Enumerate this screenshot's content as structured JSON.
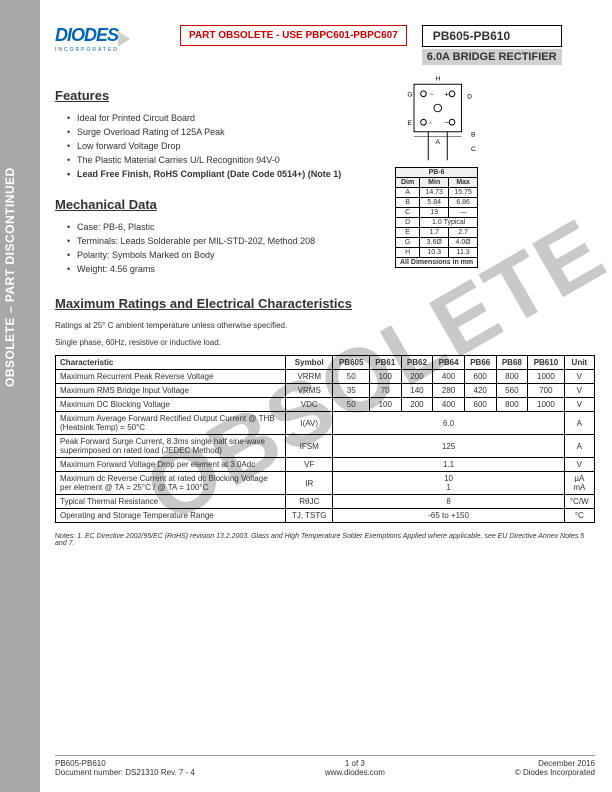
{
  "sidebar_text": "OBSOLETE – PART DISCONTINUED",
  "logo": {
    "brand": "DIODES",
    "sub": "INCORPORATED"
  },
  "obsolete_notice": "PART OBSOLETE - USE PBPC601-PBPC607",
  "part_range": "PB605-PB610",
  "subtitle": "6.0A BRIDGE RECTIFIER",
  "watermark": "OBSOLETE",
  "features": {
    "title": "Features",
    "items": [
      "Ideal for Printed Circuit Board",
      "Surge Overload Rating of 125A Peak",
      "Low forward Voltage Drop",
      "The Plastic Material Carries U/L Recognition 94V-0",
      "Lead Free Finish, RoHS Compliant (Date Code 0514+) (Note 1)"
    ],
    "bold_last": true
  },
  "mechanical": {
    "title": "Mechanical Data",
    "items": [
      "Case: PB-6, Plastic",
      "Terminals: Leads Solderable per MIL-STD-202, Method 208",
      "Polarity: Symbols Marked on Body",
      "Weight: 4.56 grams"
    ]
  },
  "dim_table": {
    "title": "PB-6",
    "headers": [
      "Dim",
      "Min",
      "Max"
    ],
    "rows": [
      [
        "A",
        "14.73",
        "15.75"
      ],
      [
        "B",
        "5.84",
        "6.86"
      ],
      [
        "C",
        "19",
        "—"
      ],
      [
        "D",
        "1.0 Typical",
        ""
      ],
      [
        "E",
        "1.7",
        "2.7"
      ],
      [
        "G",
        "3.6Ø",
        "4.0Ø"
      ],
      [
        "H",
        "10.3",
        "11.3"
      ]
    ],
    "footer": "All Dimensions in mm"
  },
  "ratings": {
    "title": "Maximum Ratings and Electrical Characteristics",
    "desc1": "Ratings at 25° C ambient temperature unless otherwise specified.",
    "desc2": "Single phase,  60Hz, resistive or inductive load.",
    "headers": [
      "Characteristic",
      "Symbol",
      "PB605",
      "PB61",
      "PB62",
      "PB64",
      "PB66",
      "PB68",
      "PB610",
      "Unit"
    ],
    "rows": [
      {
        "char": "Maximum Recurrent Peak Reverse Voltage",
        "sym": "VRRM",
        "vals": [
          "50",
          "100",
          "200",
          "400",
          "600",
          "800",
          "1000"
        ],
        "unit": "V"
      },
      {
        "char": "Maximum RMS Bridge Input Voltage",
        "sym": "VRMS",
        "vals": [
          "35",
          "70",
          "140",
          "280",
          "420",
          "560",
          "700"
        ],
        "unit": "V"
      },
      {
        "char": "Maximum DC Blocking Voltage",
        "sym": "VDC",
        "vals": [
          "50",
          "100",
          "200",
          "400",
          "600",
          "800",
          "1000"
        ],
        "unit": "V"
      },
      {
        "char": "Maximum Average Forward Rectified Output Current @ THB (Heatsink Temp) = 50°C",
        "sym": "I(AV)",
        "span": "6.0",
        "unit": "A"
      },
      {
        "char": "Peak Forward Surge Current, 8.3ms single half sine-wave superimposed on rated load (JEDEC Method)",
        "sym": "IFSM",
        "span": "125",
        "unit": "A"
      },
      {
        "char": "Maximum Forward Voltage Drop per element at 3.0Adc",
        "sym": "VF",
        "span": "1.1",
        "unit": "V"
      },
      {
        "char": "Maximum dc Reverse Current at rated dc Blocking Voltage per element @ TA = 25°C / @ TA = 100°C",
        "sym": "IR",
        "span": "10\n1",
        "unit": "µA\nmA"
      },
      {
        "char": "Typical Thermal Resistance",
        "sym": "RθJC",
        "span": "8",
        "unit": "°C/W"
      },
      {
        "char": "Operating and Storage Temperature Range",
        "sym": "TJ, TSTG",
        "span": "-65 to +150",
        "unit": "°C"
      }
    ]
  },
  "notes": {
    "label": "Notes:",
    "text": "1. EC Directive 2002/95/EC (RoHS) revision 13.2.2003. Glass and High Temperature Solder Exemptions Applied where applicable, see EU Directive Annex Notes 5 and 7."
  },
  "footer": {
    "left1": "PB605-PB610",
    "left2": "Document number: DS21310 Rev. 7 - 4",
    "center1": "1 of 3",
    "center2": "www.diodes.com",
    "right1": "December 2016",
    "right2": "© Diodes Incorporated"
  },
  "colors": {
    "brand_blue": "#0066b3",
    "red": "#c00000",
    "gray_sidebar": "#a8a8a8",
    "gray_bar": "#d0d0d0"
  }
}
